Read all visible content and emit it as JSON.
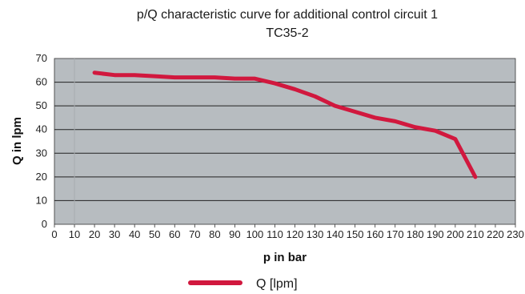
{
  "chart_data": {
    "type": "line",
    "title": "p/Q characteristic curve for additional control circuit 1",
    "subtitle": "TC35-2",
    "xlabel": "p in bar",
    "ylabel": "Q in lpm",
    "xlim": [
      0,
      230
    ],
    "ylim": [
      0,
      70
    ],
    "xticks": [
      0,
      10,
      20,
      30,
      40,
      50,
      60,
      70,
      80,
      90,
      100,
      110,
      120,
      130,
      140,
      150,
      160,
      170,
      180,
      190,
      200,
      210,
      220,
      230
    ],
    "yticks": [
      0,
      10,
      20,
      30,
      40,
      50,
      60,
      70
    ],
    "grid": "horizontal",
    "legend_position": "bottom",
    "colors": {
      "plot_background": "#b7bcc0",
      "series": "#d1183e",
      "grid": "#222222"
    },
    "series": [
      {
        "name": "Q [lpm]",
        "x": [
          20,
          30,
          40,
          50,
          60,
          70,
          80,
          90,
          100,
          110,
          120,
          130,
          140,
          150,
          160,
          170,
          180,
          190,
          200,
          210
        ],
        "y": [
          64,
          63,
          63,
          62.5,
          62,
          62,
          62,
          61.5,
          61.5,
          59.5,
          57,
          54,
          50,
          47.5,
          45,
          43.5,
          41,
          39.5,
          36,
          20
        ]
      }
    ]
  }
}
